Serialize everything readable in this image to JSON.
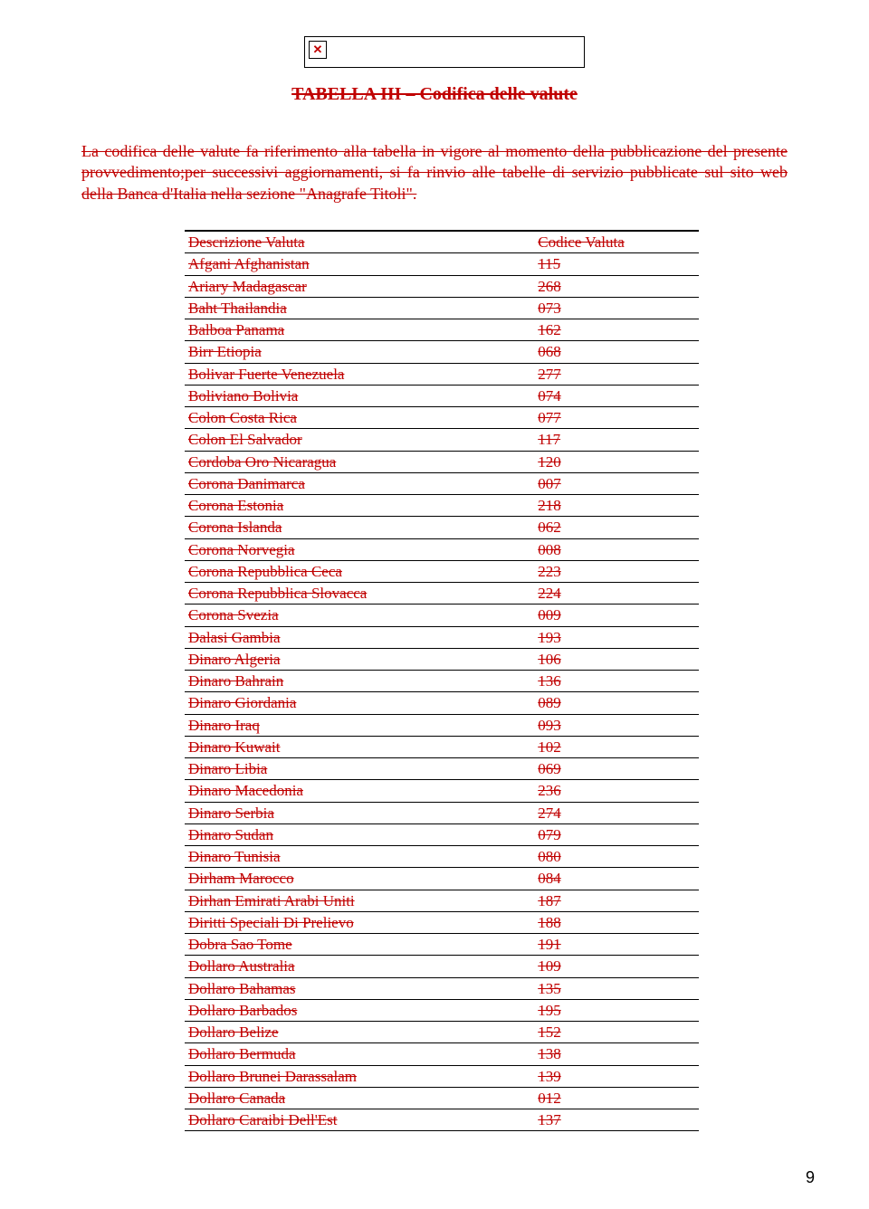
{
  "brokenGlyph": "✕",
  "title": "TABELLA III – Codifica delle valute",
  "intro": "La codifica delle valute fa riferimento alla tabella in vigore al momento della pubblicazione del presente provvedimento;per successivi aggiornamenti, si fa rinvio alle tabelle di servizio pubblicate sul sito web della Banca d'Italia nella sezione \"Anagrafe Titoli\".",
  "header": {
    "desc": "Descrizione Valuta",
    "code": "Codice Valuta"
  },
  "rows": [
    {
      "desc": "Afgani Afghanistan",
      "code": "115"
    },
    {
      "desc": "Ariary Madagascar",
      "code": "268"
    },
    {
      "desc": "Baht Thailandia",
      "code": "073"
    },
    {
      "desc": "Balboa Panama",
      "code": "162"
    },
    {
      "desc": "Birr Etiopia",
      "code": "068"
    },
    {
      "desc": "Bolivar Fuerte Venezuela",
      "code": "277"
    },
    {
      "desc": "Boliviano Bolivia",
      "code": "074"
    },
    {
      "desc": "Colon Costa Rica",
      "code": "077"
    },
    {
      "desc": "Colon El Salvador",
      "code": "117"
    },
    {
      "desc": "Cordoba Oro Nicaragua",
      "code": "120"
    },
    {
      "desc": "Corona Danimarca",
      "code": "007"
    },
    {
      "desc": "Corona Estonia",
      "code": "218"
    },
    {
      "desc": "Corona Islanda",
      "code": "062"
    },
    {
      "desc": "Corona Norvegia",
      "code": "008"
    },
    {
      "desc": "Corona Repubblica Ceca",
      "code": "223"
    },
    {
      "desc": "Corona Repubblica Slovacca",
      "code": "224"
    },
    {
      "desc": "Corona Svezia",
      "code": "009"
    },
    {
      "desc": "Dalasi Gambia",
      "code": "193"
    },
    {
      "desc": "Dinaro Algeria",
      "code": "106"
    },
    {
      "desc": "Dinaro Bahrain",
      "code": "136"
    },
    {
      "desc": "Dinaro Giordania",
      "code": "089"
    },
    {
      "desc": "Dinaro Iraq",
      "code": "093"
    },
    {
      "desc": "Dinaro Kuwait",
      "code": "102"
    },
    {
      "desc": "Dinaro Libia",
      "code": "069"
    },
    {
      "desc": "Dinaro Macedonia",
      "code": "236"
    },
    {
      "desc": "Dinaro Serbia",
      "code": "274"
    },
    {
      "desc": "Dinaro Sudan",
      "code": "079"
    },
    {
      "desc": "Dinaro Tunisia",
      "code": "080"
    },
    {
      "desc": "Dirham Marocco",
      "code": "084"
    },
    {
      "desc": "Dirhan Emirati Arabi Uniti",
      "code": "187"
    },
    {
      "desc": "Diritti Speciali Di Prelievo",
      "code": "188"
    },
    {
      "desc": "Dobra Sao Tome",
      "code": "191"
    },
    {
      "desc": "Dollaro Australia",
      "code": "109"
    },
    {
      "desc": "Dollaro Bahamas",
      "code": "135"
    },
    {
      "desc": "Dollaro Barbados",
      "code": "195"
    },
    {
      "desc": "Dollaro Belize",
      "code": "152"
    },
    {
      "desc": "Dollaro Bermuda",
      "code": "138"
    },
    {
      "desc": "Dollaro Brunei Darassalam",
      "code": "139"
    },
    {
      "desc": "Dollaro Canada",
      "code": "012"
    },
    {
      "desc": "Dollaro Caraibi Dell'Est",
      "code": "137"
    }
  ],
  "pageNumber": "9",
  "colors": {
    "text": "#c00000",
    "border": "#000000",
    "background": "#ffffff"
  }
}
